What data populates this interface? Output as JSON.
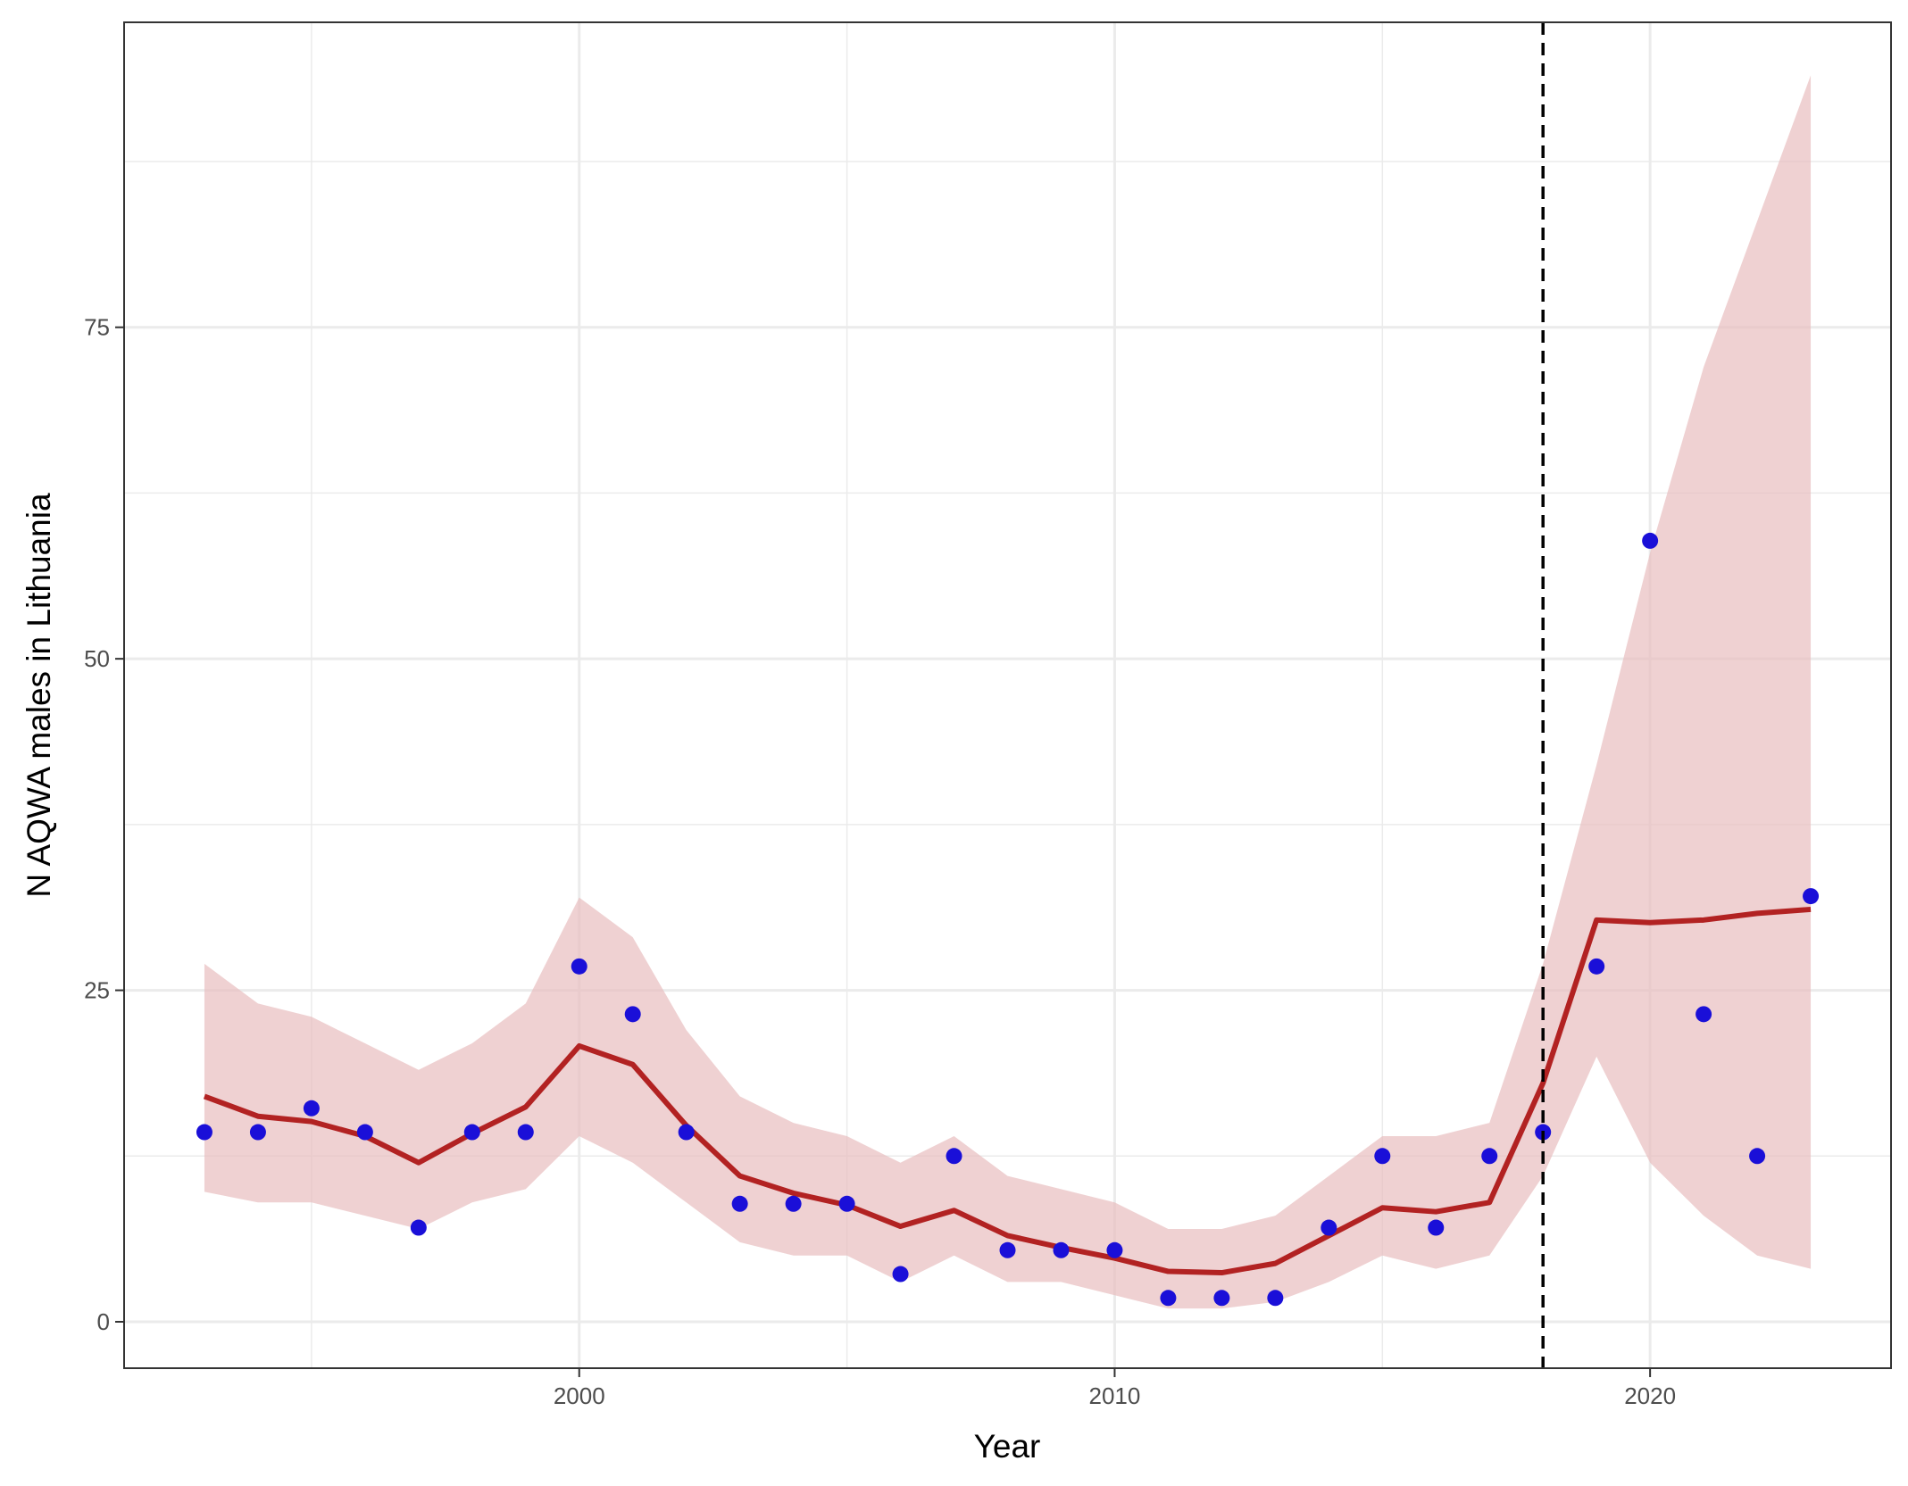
{
  "chart_data": {
    "type": "line",
    "title": "",
    "xlabel": "Year",
    "ylabel": "N AQWA males in Lithuania",
    "xlim": [
      1991.5,
      2024.5
    ],
    "ylim": [
      -3.5,
      98
    ],
    "x_major_ticks": [
      2000,
      2010,
      2020
    ],
    "x_minor_ticks": [
      1995,
      2005,
      2015
    ],
    "y_major_ticks": [
      0,
      25,
      50,
      75
    ],
    "y_minor_ticks": [
      12.5,
      37.5,
      62.5,
      87.5
    ],
    "x_tick_labels": [
      "2000",
      "2010",
      "2020"
    ],
    "y_tick_labels": [
      "0",
      "25",
      "50",
      "75"
    ],
    "grid": true,
    "legend": "none",
    "reference_line": {
      "x": 2018,
      "style": "dashed",
      "color": "#000000"
    },
    "colors": {
      "points": "#1a0fd8",
      "line": "#b22222",
      "ribbon": "#e8bdbf"
    },
    "series": [
      {
        "kind": "points",
        "x": [
          1993,
          1994,
          1995,
          1996,
          1997,
          1998,
          1999,
          2000,
          2001,
          2002,
          2003,
          2004,
          2005,
          2006,
          2007,
          2008,
          2009,
          2010,
          2011,
          2012,
          2013,
          2014,
          2015,
          2016,
          2017,
          2018,
          2019,
          2020,
          2021,
          2022,
          2023
        ],
        "values": [
          14.3,
          14.3,
          16.1,
          14.3,
          7.1,
          14.3,
          14.3,
          26.8,
          23.2,
          14.3,
          8.9,
          8.9,
          8.9,
          3.6,
          12.5,
          5.4,
          5.4,
          5.4,
          1.8,
          1.8,
          1.8,
          7.1,
          12.5,
          7.1,
          12.5,
          14.3,
          26.8,
          58.9,
          23.2,
          12.5,
          32.1
        ]
      },
      {
        "kind": "line",
        "x": [
          1993,
          1994,
          1995,
          1996,
          1997,
          1998,
          1999,
          2000,
          2001,
          2002,
          2003,
          2004,
          2005,
          2006,
          2007,
          2008,
          2009,
          2010,
          2011,
          2012,
          2013,
          2014,
          2015,
          2016,
          2017,
          2018,
          2019,
          2020,
          2021,
          2022,
          2023
        ],
        "values": [
          17.0,
          15.5,
          15.1,
          14.0,
          12.0,
          14.2,
          16.2,
          20.8,
          19.4,
          14.8,
          11.0,
          9.7,
          8.8,
          7.2,
          8.4,
          6.5,
          5.6,
          4.8,
          3.8,
          3.7,
          4.4,
          6.5,
          8.6,
          8.3,
          9.0,
          18.0,
          30.3,
          30.1,
          30.3,
          30.8,
          31.1
        ]
      },
      {
        "kind": "ribbon",
        "x": [
          1993,
          1994,
          1995,
          1996,
          1997,
          1998,
          1999,
          2000,
          2001,
          2002,
          2003,
          2004,
          2005,
          2006,
          2007,
          2008,
          2009,
          2010,
          2011,
          2012,
          2013,
          2014,
          2015,
          2016,
          2017,
          2018,
          2019,
          2020,
          2021,
          2022,
          2023
        ],
        "lower": [
          9.8,
          9.0,
          9.0,
          8.0,
          7.0,
          9.0,
          10.0,
          14.0,
          12.0,
          9.0,
          6.0,
          5.0,
          5.0,
          3.0,
          5.0,
          3.0,
          3.0,
          2.0,
          1.0,
          1.0,
          1.5,
          3.0,
          5.0,
          4.0,
          5.0,
          11.0,
          20.0,
          12.0,
          8.0,
          5.0,
          4.0
        ],
        "upper": [
          27.0,
          24.0,
          23.0,
          21.0,
          19.0,
          21.0,
          24.0,
          32.0,
          29.0,
          22.0,
          17.0,
          15.0,
          14.0,
          12.0,
          14.0,
          11.0,
          10.0,
          9.0,
          7.0,
          7.0,
          8.0,
          11.0,
          14.0,
          14.0,
          15.0,
          27.0,
          42.0,
          58.0,
          72.0,
          83.0,
          94.0
        ]
      }
    ]
  }
}
